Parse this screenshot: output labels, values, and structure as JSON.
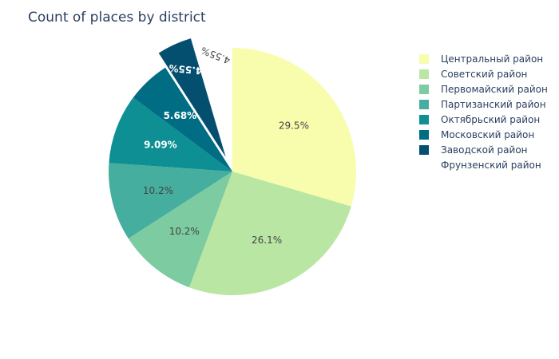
{
  "chart_data": {
    "type": "pie",
    "title": "Count of places by district",
    "slices": [
      {
        "label": "Центральный район",
        "percent": 29.5,
        "percent_label": "29.5%",
        "color": "#f7fdad",
        "text_color": "#444444"
      },
      {
        "label": "Советский район",
        "percent": 26.1,
        "percent_label": "26.1%",
        "color": "#bae6a3",
        "text_color": "#444444"
      },
      {
        "label": "Первомайский район",
        "percent": 10.2,
        "percent_label": "10.2%",
        "color": "#7dcba1",
        "text_color": "#444444"
      },
      {
        "label": "Партизанский район",
        "percent": 10.2,
        "percent_label": "10.2%",
        "color": "#45ae9e",
        "text_color": "#444444"
      },
      {
        "label": "Октябрьский район",
        "percent": 9.09,
        "percent_label": "9.09%",
        "color": "#0d8f93",
        "text_color": "#ffffff"
      },
      {
        "label": "Московский район",
        "percent": 5.68,
        "percent_label": "5.68%",
        "color": "#006d84",
        "text_color": "#ffffff"
      },
      {
        "label": "Заводской район",
        "percent": 4.55,
        "percent_label": "4.55%",
        "color": "#044f6f",
        "text_color": "#ffffff",
        "pulled": true
      },
      {
        "label": "Фрунзенский район",
        "percent": 4.55,
        "percent_label": "4.55%",
        "color": "#ffffff",
        "text_color": "#444444",
        "pulled": true
      }
    ],
    "legend_position": "right"
  }
}
